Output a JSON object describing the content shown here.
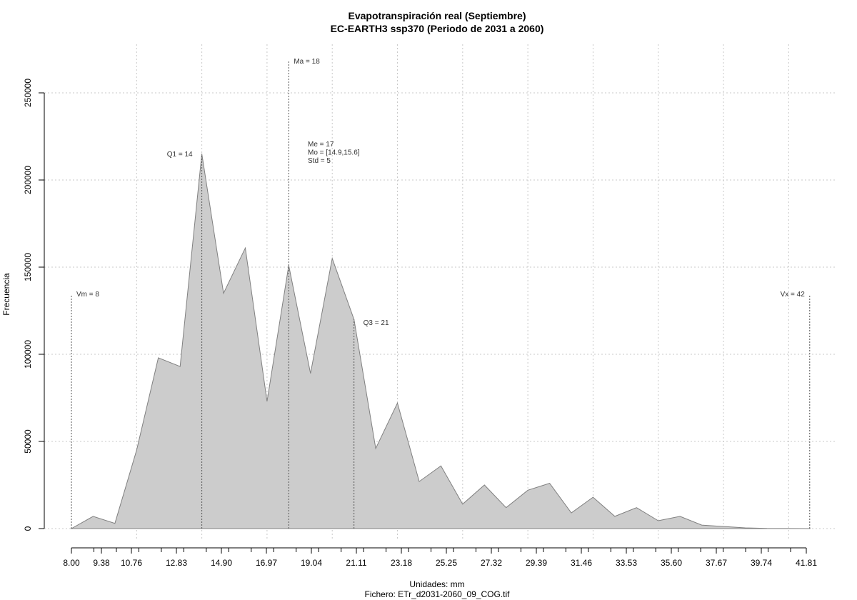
{
  "chart_data": {
    "type": "area",
    "title": "Evapotranspiración real (Septiembre)",
    "subtitle": "EC-EARTH3 ssp370 (Periodo de 2031 a 2060)",
    "xlabel": "Unidades: mm",
    "ylabel": "Frecuencia",
    "footer": "Fichero: ETr_d2031-2060_09_COG.tif",
    "xlim": [
      8.0,
      41.81
    ],
    "ylim": [
      0,
      250000
    ],
    "grid": true,
    "fill_color": "#cccccc",
    "line_color": "#808080",
    "x_tick_labels": [
      "8.00",
      "9.38",
      "10.76",
      "12.83",
      "14.90",
      "16.97",
      "19.04",
      "21.11",
      "23.18",
      "25.25",
      "27.32",
      "29.39",
      "31.46",
      "33.53",
      "35.60",
      "37.67",
      "39.74",
      "41.81"
    ],
    "x_tick_values": [
      8.0,
      9.38,
      10.76,
      12.83,
      14.9,
      16.97,
      19.04,
      21.11,
      23.18,
      25.25,
      27.32,
      29.39,
      31.46,
      33.53,
      35.6,
      37.67,
      39.74,
      41.81
    ],
    "y_tick_labels": [
      "0",
      "50000",
      "100000",
      "150000",
      "200000",
      "250000"
    ],
    "y_tick_values": [
      0,
      50000,
      100000,
      150000,
      200000,
      250000
    ],
    "x": [
      8.0,
      9.0,
      10.0,
      11.0,
      12.0,
      13.0,
      14.0,
      15.0,
      16.0,
      17.0,
      18.0,
      19.0,
      20.0,
      21.0,
      22.0,
      23.0,
      24.0,
      25.0,
      26.0,
      27.0,
      28.0,
      29.0,
      30.0,
      31.0,
      32.0,
      33.0,
      34.0,
      35.0,
      36.0,
      37.0,
      38.0,
      39.0,
      40.0,
      41.0,
      42.0
    ],
    "values": [
      0,
      7000,
      3000,
      45000,
      98000,
      93000,
      215000,
      135000,
      161000,
      73000,
      151000,
      89000,
      155000,
      120000,
      46000,
      72000,
      27000,
      36000,
      14000,
      25000,
      12000,
      22000,
      26000,
      9000,
      18000,
      7000,
      12000,
      4500,
      7000,
      2000,
      1200,
      400,
      100,
      50,
      0
    ],
    "annotations": {
      "vm": {
        "label": "Vm = 8",
        "x": 8.0
      },
      "q1": {
        "label": "Q1 = 14",
        "x": 14.0
      },
      "ma": {
        "label": "Ma = 18",
        "x": 18.0
      },
      "stats": [
        "Me = 17",
        "Mo = [14.9,15.6]",
        "Std = 5"
      ],
      "q3": {
        "label": "Q3 = 21",
        "x": 21.0
      },
      "vx": {
        "label": "Vx = 42",
        "x": 42.0
      }
    }
  }
}
